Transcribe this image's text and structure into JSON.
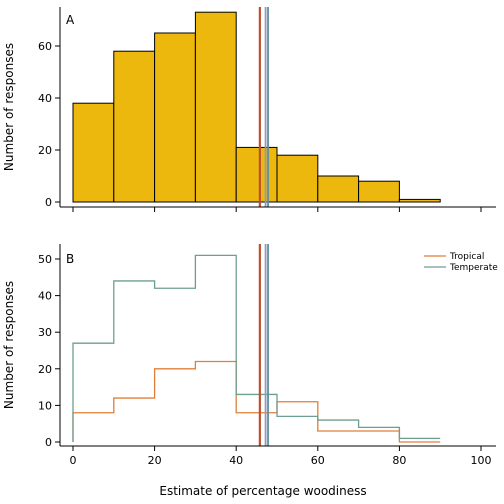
{
  "chart_data": [
    {
      "panel": "A",
      "type": "bar",
      "bin_edges": [
        0,
        10,
        20,
        30,
        40,
        50,
        60,
        70,
        80,
        90
      ],
      "values": [
        38,
        58,
        65,
        73,
        21,
        18,
        10,
        8,
        1
      ],
      "xlim": [
        0,
        105
      ],
      "ylim": [
        0,
        75
      ],
      "yticks": [
        0,
        20,
        40,
        60
      ],
      "xticks": [
        0,
        20,
        40,
        60,
        80,
        100
      ],
      "show_xtick_labels": false,
      "ylabel": "Number of responses",
      "xlabel": "",
      "fill": "#EDB80E",
      "reference_lines": [
        {
          "x": 45.8,
          "color": "#C0502D"
        },
        {
          "x": 47.2,
          "color": "#8C9BBF"
        },
        {
          "x": 47.8,
          "color": "#5F8FA0"
        }
      ],
      "grid": false
    },
    {
      "panel": "B",
      "type": "line",
      "bin_edges": [
        0,
        10,
        20,
        30,
        40,
        50,
        60,
        70,
        80,
        90
      ],
      "series": [
        {
          "name": "Tropical",
          "color": "#E07E3A",
          "values": [
            8,
            12,
            20,
            22,
            8,
            11,
            3,
            3,
            0
          ]
        },
        {
          "name": "Temperate",
          "color": "#6E9E92",
          "values": [
            27,
            44,
            42,
            51,
            13,
            7,
            6,
            4,
            1
          ]
        }
      ],
      "xlim": [
        0,
        105
      ],
      "ylim": [
        0,
        52
      ],
      "yticks": [
        0,
        10,
        20,
        30,
        40,
        50
      ],
      "xticks": [
        0,
        20,
        40,
        60,
        80,
        100
      ],
      "show_xtick_labels": true,
      "ylabel": "Number of responses",
      "xlabel": "Estimate of percentage woodiness",
      "legend_position": "top-right",
      "reference_lines": [
        {
          "x": 45.8,
          "color": "#C0502D"
        },
        {
          "x": 47.2,
          "color": "#8C9BBF"
        },
        {
          "x": 47.8,
          "color": "#5F8FA0"
        }
      ],
      "grid": false
    }
  ]
}
